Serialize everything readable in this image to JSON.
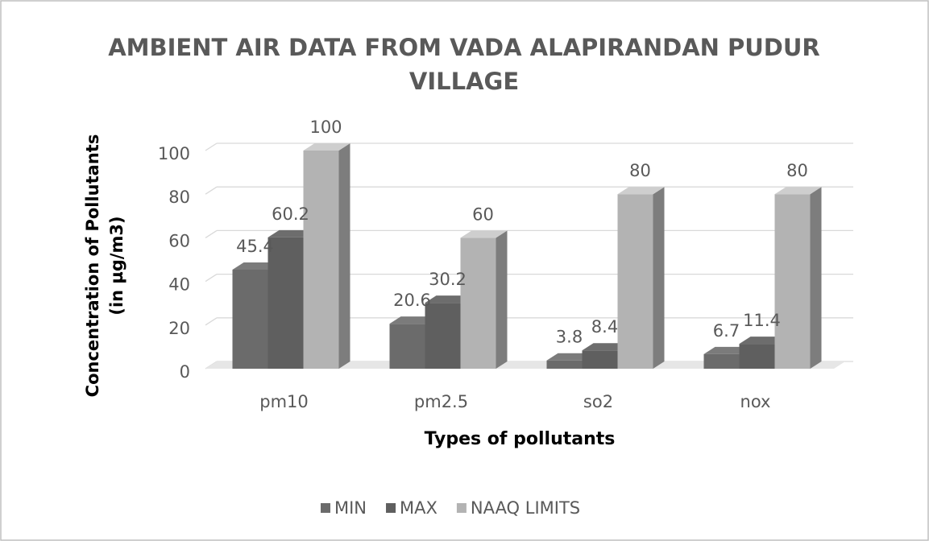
{
  "chart_data": {
    "type": "bar3d",
    "title": "AMBIENT AIR DATA FROM VADA ALAPIRANDAN PUDUR VILLAGE",
    "x_label": "Types of pollutants",
    "y_label": "Concentration of Pollutants (in µg/m3)",
    "categories": [
      "pm10",
      "pm2.5",
      "so2",
      "nox"
    ],
    "series": [
      {
        "name": "MIN",
        "color": "#6b6b6b",
        "values": [
          45.4,
          20.6,
          3.8,
          6.7
        ]
      },
      {
        "name": "MAX",
        "color": "#5f5f5f",
        "values": [
          60.2,
          30.2,
          8.4,
          11.4
        ]
      },
      {
        "name": "NAAQ LIMITS",
        "color": "#b3b3b3",
        "values": [
          100,
          60,
          80,
          80
        ]
      }
    ],
    "ylim": [
      0,
      100
    ],
    "yticks": [
      0,
      20,
      40,
      60,
      80,
      100
    ],
    "grid": true,
    "legend": "bottom"
  }
}
